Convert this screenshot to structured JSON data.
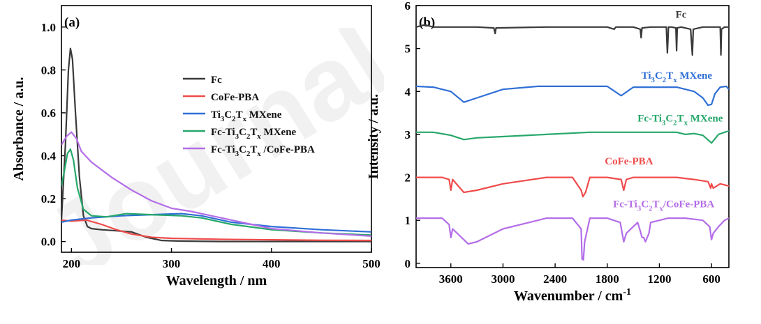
{
  "watermark": "Journal",
  "colors": {
    "Fc": "#3a3a3a",
    "CoFe-PBA": "#ef4b4b",
    "Ti3C2Tx MXene": "#2f6fd6",
    "Fc-Ti3C2Tx MXene": "#27a86b",
    "Fc-Ti3C2Tx/CoFe-PBA": "#b46de8"
  },
  "chart_data": [
    {
      "panel": "(a)",
      "type": "line",
      "xlabel": "Wavelength / nm",
      "ylabel": "Absorbance / a.u.",
      "xlim": [
        190,
        500
      ],
      "ylim": [
        -0.05,
        1.1
      ],
      "xticks": [
        200,
        300,
        400,
        500
      ],
      "yticks": [
        0.0,
        0.2,
        0.4,
        0.6,
        0.8,
        1.0
      ],
      "legend_placement": "right-middle",
      "grid": false,
      "series": [
        {
          "name": "Fc",
          "key": "Fc",
          "x": [
            190,
            194,
            197,
            199,
            201,
            204,
            208,
            212,
            216,
            220,
            230,
            245,
            260,
            275,
            290,
            310,
            350,
            400,
            450,
            500
          ],
          "y": [
            0.1,
            0.45,
            0.8,
            0.9,
            0.85,
            0.6,
            0.3,
            0.12,
            0.07,
            0.06,
            0.055,
            0.05,
            0.045,
            0.02,
            0.005,
            0.002,
            0.0,
            0.0,
            0.0,
            0.0
          ]
        },
        {
          "name": "CoFe-PBA",
          "key": "CoFe-PBA",
          "x": [
            190,
            200,
            215,
            230,
            245,
            260,
            280,
            300,
            350,
            400,
            450,
            500
          ],
          "y": [
            0.1,
            0.095,
            0.1,
            0.08,
            0.055,
            0.035,
            0.02,
            0.015,
            0.01,
            0.008,
            0.006,
            0.005
          ]
        },
        {
          "name": "Ti3C2Tx MXene",
          "key": "Ti3C2Tx MXene",
          "x": [
            190,
            200,
            220,
            250,
            280,
            310,
            330,
            360,
            400,
            450,
            500
          ],
          "y": [
            0.09,
            0.1,
            0.11,
            0.12,
            0.125,
            0.13,
            0.12,
            0.09,
            0.07,
            0.055,
            0.045
          ]
        },
        {
          "name": "Fc-Ti3C2Tx MXene",
          "key": "Fc-Ti3C2Tx MXene",
          "x": [
            190,
            193,
            196,
            199,
            202,
            206,
            212,
            220,
            235,
            255,
            280,
            310,
            330,
            360,
            400,
            450,
            500
          ],
          "y": [
            0.26,
            0.33,
            0.41,
            0.43,
            0.38,
            0.25,
            0.15,
            0.12,
            0.115,
            0.13,
            0.125,
            0.12,
            0.11,
            0.08,
            0.055,
            0.04,
            0.03
          ]
        },
        {
          "name": "Fc-Ti3C2Tx /CoFe-PBA",
          "key": "Fc-Ti3C2Tx/CoFe-PBA",
          "x": [
            190,
            195,
            200,
            205,
            210,
            220,
            240,
            260,
            280,
            300,
            320,
            340,
            360,
            380,
            400,
            450,
            500
          ],
          "y": [
            0.45,
            0.49,
            0.51,
            0.48,
            0.42,
            0.37,
            0.3,
            0.24,
            0.19,
            0.155,
            0.14,
            0.12,
            0.1,
            0.08,
            0.06,
            0.04,
            0.025
          ]
        }
      ],
      "legend_labels": [
        {
          "key": "Fc",
          "parts": [
            [
              "Fc",
              ""
            ]
          ]
        },
        {
          "key": "CoFe-PBA",
          "parts": [
            [
              "CoFe-PBA",
              ""
            ]
          ]
        },
        {
          "key": "Ti3C2Tx MXene",
          "parts": [
            [
              "Ti",
              ""
            ],
            [
              "3",
              "sub"
            ],
            [
              "C",
              ""
            ],
            [
              "2",
              "sub"
            ],
            [
              "T",
              ""
            ],
            [
              "x",
              "sub"
            ],
            [
              " MXene",
              ""
            ]
          ]
        },
        {
          "key": "Fc-Ti3C2Tx MXene",
          "parts": [
            [
              "Fc-Ti",
              ""
            ],
            [
              "3",
              "sub"
            ],
            [
              "C",
              ""
            ],
            [
              "2",
              "sub"
            ],
            [
              "T",
              ""
            ],
            [
              "x",
              "sub"
            ],
            [
              " MXene",
              ""
            ]
          ]
        },
        {
          "key": "Fc-Ti3C2Tx/CoFe-PBA",
          "parts": [
            [
              "Fc-Ti",
              ""
            ],
            [
              "3",
              "sub"
            ],
            [
              "C",
              ""
            ],
            [
              "2",
              "sub"
            ],
            [
              "T",
              ""
            ],
            [
              "x",
              "sub"
            ],
            [
              " /CoFe-PBA",
              ""
            ]
          ]
        }
      ]
    },
    {
      "panel": "(b)",
      "type": "line",
      "xlabel": "Wavenumber / cm",
      "xlabel_sup": "-1",
      "ylabel": "Intensity / a.u.",
      "xlim": [
        4000,
        400
      ],
      "ylim": [
        -0.1,
        6
      ],
      "xticks": [
        3600,
        3000,
        2400,
        1800,
        1200,
        600
      ],
      "yticks": [
        0,
        1,
        2,
        3,
        4,
        5,
        6
      ],
      "grid": false,
      "series": [
        {
          "name": "Fc",
          "key": "Fc",
          "x": [
            4000,
            3900,
            3800,
            3300,
            3105,
            3090,
            3080,
            2500,
            1800,
            1720,
            1700,
            1650,
            1500,
            1420,
            1410,
            1400,
            1300,
            1120,
            1108,
            1095,
            1060,
            1010,
            1002,
            995,
            950,
            840,
            820,
            810,
            700,
            500,
            492,
            485,
            450,
            400
          ],
          "y": [
            5.5,
            5.55,
            5.5,
            5.5,
            5.48,
            5.35,
            5.48,
            5.5,
            5.5,
            5.45,
            5.5,
            5.5,
            5.5,
            5.45,
            5.25,
            5.48,
            5.5,
            5.5,
            4.9,
            5.5,
            5.5,
            5.48,
            4.95,
            5.48,
            5.5,
            5.45,
            4.85,
            5.45,
            5.5,
            5.5,
            4.85,
            5.45,
            5.5,
            5.5
          ]
        },
        {
          "name": "Ti3C2Tx  MXene",
          "key": "Ti3C2Tx MXene",
          "x": [
            4000,
            3800,
            3600,
            3450,
            3300,
            3000,
            2600,
            2200,
            1800,
            1640,
            1500,
            1200,
            1000,
            900,
            800,
            700,
            640,
            600,
            560,
            500,
            430,
            400
          ],
          "y": [
            4.12,
            4.1,
            4.0,
            3.75,
            3.85,
            4.05,
            4.12,
            4.12,
            4.12,
            3.9,
            4.1,
            4.1,
            4.1,
            4.05,
            4.0,
            3.85,
            3.68,
            3.7,
            3.95,
            4.1,
            4.12,
            4.05
          ]
        },
        {
          "name": "Fc-Ti3C2Tx  MXene",
          "key": "Fc-Ti3C2Tx MXene",
          "x": [
            4000,
            3800,
            3600,
            3450,
            3300,
            3000,
            2500,
            2000,
            1700,
            1500,
            1200,
            1000,
            900,
            800,
            700,
            600,
            580,
            520,
            450,
            400
          ],
          "y": [
            3.05,
            3.05,
            2.98,
            2.88,
            2.92,
            2.95,
            3.0,
            3.05,
            3.05,
            3.05,
            3.05,
            3.05,
            3.0,
            3.02,
            2.98,
            2.8,
            2.85,
            3.0,
            3.05,
            3.08
          ]
        },
        {
          "name": "CoFe-PBA",
          "key": "CoFe-PBA",
          "x": [
            4000,
            3700,
            3620,
            3600,
            3580,
            3450,
            3300,
            3000,
            2500,
            2200,
            2100,
            2080,
            2050,
            2000,
            1800,
            1640,
            1610,
            1580,
            1500,
            1400,
            1000,
            800,
            640,
            610,
            600,
            580,
            500,
            400
          ],
          "y": [
            2.0,
            2.0,
            1.95,
            1.7,
            1.95,
            1.65,
            1.7,
            1.85,
            2.0,
            2.0,
            1.7,
            1.55,
            1.65,
            2.0,
            2.0,
            1.95,
            1.7,
            1.95,
            2.0,
            2.0,
            2.0,
            1.95,
            1.9,
            1.75,
            1.85,
            1.75,
            1.85,
            1.8
          ]
        },
        {
          "name": "Fc-Ti3C2Tx/CoFe-PBA",
          "key": "Fc-Ti3C2Tx/CoFe-PBA",
          "x": [
            4000,
            3700,
            3620,
            3600,
            3580,
            3400,
            3300,
            3000,
            2500,
            2200,
            2100,
            2090,
            2075,
            2060,
            2000,
            1800,
            1650,
            1610,
            1580,
            1450,
            1420,
            1400,
            1380,
            1360,
            1320,
            1300,
            1100,
            900,
            700,
            620,
            600,
            580,
            520,
            450,
            400
          ],
          "y": [
            1.05,
            1.05,
            0.9,
            0.6,
            0.8,
            0.45,
            0.5,
            0.8,
            1.05,
            1.05,
            0.8,
            0.1,
            0.08,
            0.5,
            1.05,
            1.05,
            0.95,
            0.5,
            0.7,
            0.95,
            0.75,
            0.6,
            0.6,
            0.5,
            0.7,
            0.95,
            1.05,
            1.05,
            1.0,
            0.85,
            0.55,
            0.7,
            0.85,
            1.0,
            1.05
          ]
        }
      ],
      "curve_labels": [
        {
          "key": "Fc",
          "x": 950,
          "y": 5.72,
          "parts": [
            [
              "Fc",
              ""
            ]
          ]
        },
        {
          "key": "Ti3C2Tx MXene",
          "x": 1000,
          "y": 4.3,
          "parts": [
            [
              "Ti",
              ""
            ],
            [
              "3",
              "sub"
            ],
            [
              "C",
              ""
            ],
            [
              "2",
              "sub"
            ],
            [
              "T",
              ""
            ],
            [
              "x",
              "sub"
            ],
            [
              "  MXene",
              ""
            ]
          ]
        },
        {
          "key": "Fc-Ti3C2Tx MXene",
          "x": 960,
          "y": 3.3,
          "parts": [
            [
              "Fc-Ti",
              ""
            ],
            [
              "3",
              "sub"
            ],
            [
              "C",
              ""
            ],
            [
              "2",
              "sub"
            ],
            [
              "T",
              ""
            ],
            [
              "x",
              "sub"
            ],
            [
              "  MXene",
              ""
            ]
          ]
        },
        {
          "key": "CoFe-PBA",
          "x": 1550,
          "y": 2.3,
          "parts": [
            [
              "CoFe-PBA",
              ""
            ]
          ]
        },
        {
          "key": "Fc-Ti3C2Tx/CoFe-PBA",
          "x": 1150,
          "y": 1.3,
          "parts": [
            [
              "Fc-Ti",
              ""
            ],
            [
              "3",
              "sub"
            ],
            [
              "C",
              ""
            ],
            [
              "2",
              "sub"
            ],
            [
              "T",
              ""
            ],
            [
              "x",
              "sub"
            ],
            [
              "/CoFe-PBA",
              ""
            ]
          ]
        }
      ]
    }
  ]
}
